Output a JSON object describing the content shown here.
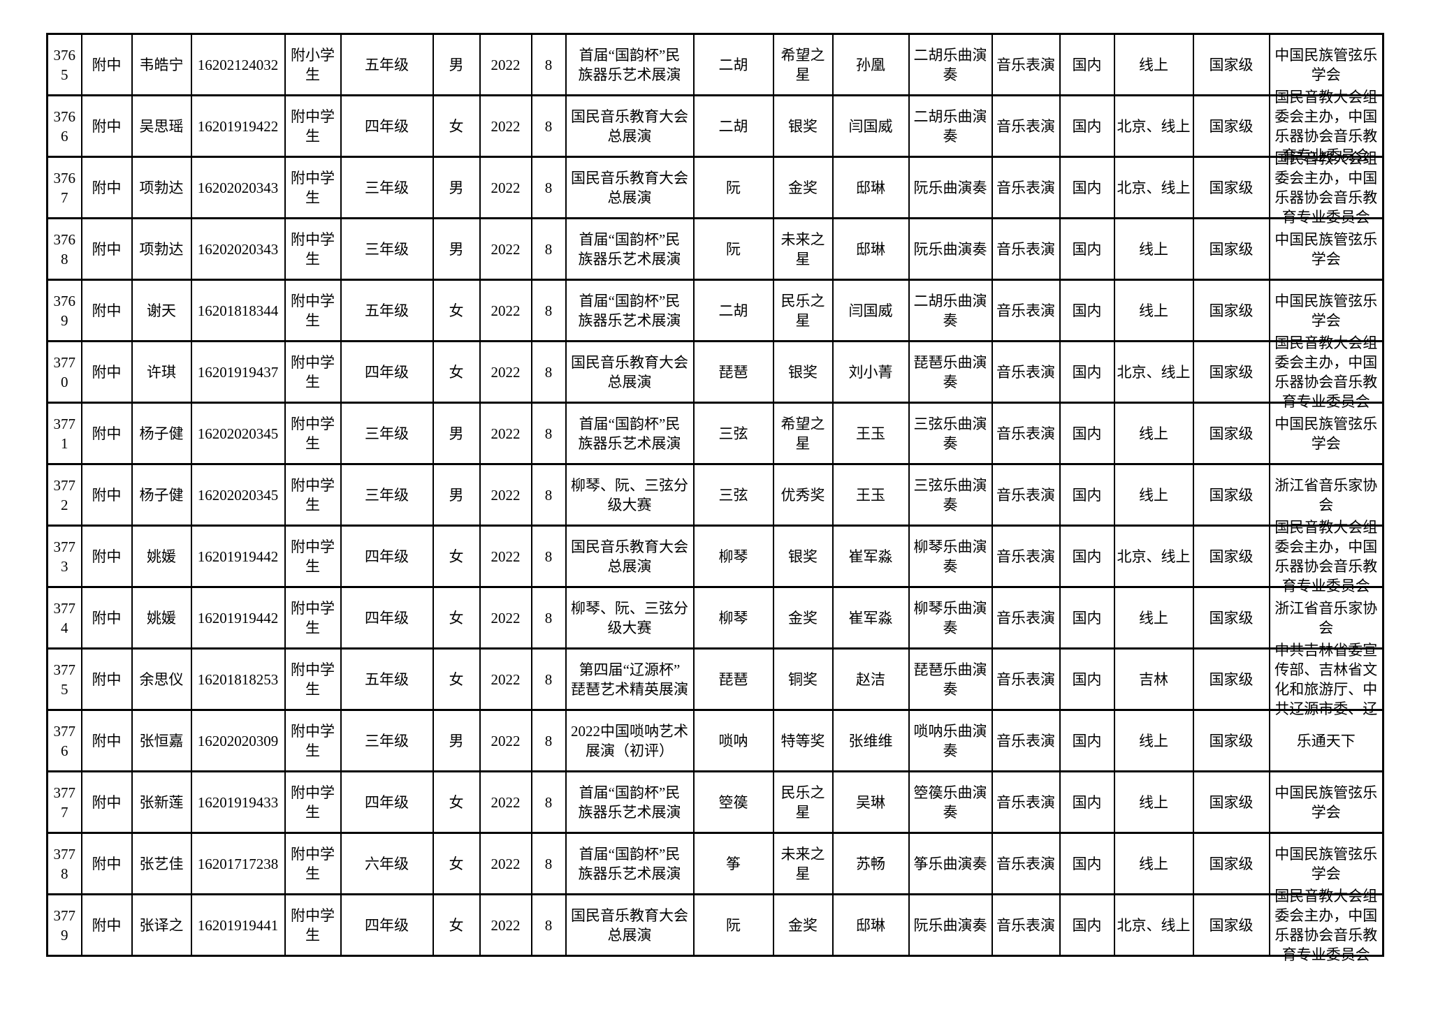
{
  "table": {
    "rows": [
      {
        "cells": [
          "3765",
          "附中",
          "韦皓宁",
          "16202124032",
          "附小学\n生",
          "五年级",
          "男",
          "2022",
          "8",
          "首届“国韵杯”民\n族器乐艺术展演",
          "二胡",
          "希望之\n星",
          "孙凰",
          "二胡乐曲演\n奏",
          "音乐表演",
          "国内",
          "线上",
          "国家级",
          "中国民族管弦乐\n学会"
        ]
      },
      {
        "cells": [
          "3766",
          "附中",
          "吴思瑶",
          "16201919422",
          "附中学\n生",
          "四年级",
          "女",
          "2022",
          "8",
          "国民音乐教育大会\n总展演",
          "二胡",
          "银奖",
          "闫国威",
          "二胡乐曲演\n奏",
          "音乐表演",
          "国内",
          "北京、线上",
          "国家级",
          "国民音教大会组\n委会主办，中国\n乐器协会音乐教\n育专业委员会"
        ]
      },
      {
        "cells": [
          "3767",
          "附中",
          "项勃达",
          "16202020343",
          "附中学\n生",
          "三年级",
          "男",
          "2022",
          "8",
          "国民音乐教育大会\n总展演",
          "阮",
          "金奖",
          "邸琳",
          "阮乐曲演奏",
          "音乐表演",
          "国内",
          "北京、线上",
          "国家级",
          "国民音教大会组\n委会主办，中国\n乐器协会音乐教\n育专业委员会"
        ]
      },
      {
        "cells": [
          "3768",
          "附中",
          "项勃达",
          "16202020343",
          "附中学\n生",
          "三年级",
          "男",
          "2022",
          "8",
          "首届“国韵杯”民\n族器乐艺术展演",
          "阮",
          "未来之\n星",
          "邸琳",
          "阮乐曲演奏",
          "音乐表演",
          "国内",
          "线上",
          "国家级",
          "中国民族管弦乐\n学会"
        ]
      },
      {
        "cells": [
          "3769",
          "附中",
          "谢天",
          "16201818344",
          "附中学\n生",
          "五年级",
          "女",
          "2022",
          "8",
          "首届“国韵杯”民\n族器乐艺术展演",
          "二胡",
          "民乐之\n星",
          "闫国威",
          "二胡乐曲演\n奏",
          "音乐表演",
          "国内",
          "线上",
          "国家级",
          "中国民族管弦乐\n学会"
        ]
      },
      {
        "cells": [
          "3770",
          "附中",
          "许琪",
          "16201919437",
          "附中学\n生",
          "四年级",
          "女",
          "2022",
          "8",
          "国民音乐教育大会\n总展演",
          "琵琶",
          "银奖",
          "刘小菁",
          "琵琶乐曲演\n奏",
          "音乐表演",
          "国内",
          "北京、线上",
          "国家级",
          "国民音教大会组\n委会主办，中国\n乐器协会音乐教\n育专业委员会"
        ]
      },
      {
        "cells": [
          "3771",
          "附中",
          "杨子健",
          "16202020345",
          "附中学\n生",
          "三年级",
          "男",
          "2022",
          "8",
          "首届“国韵杯”民\n族器乐艺术展演",
          "三弦",
          "希望之\n星",
          "王玉",
          "三弦乐曲演\n奏",
          "音乐表演",
          "国内",
          "线上",
          "国家级",
          "中国民族管弦乐\n学会"
        ]
      },
      {
        "cells": [
          "3772",
          "附中",
          "杨子健",
          "16202020345",
          "附中学\n生",
          "三年级",
          "男",
          "2022",
          "8",
          "柳琴、阮、三弦分\n级大赛",
          "三弦",
          "优秀奖",
          "王玉",
          "三弦乐曲演\n奏",
          "音乐表演",
          "国内",
          "线上",
          "国家级",
          "浙江省音乐家协\n会"
        ]
      },
      {
        "cells": [
          "3773",
          "附中",
          "姚媛",
          "16201919442",
          "附中学\n生",
          "四年级",
          "女",
          "2022",
          "8",
          "国民音乐教育大会\n总展演",
          "柳琴",
          "银奖",
          "崔军淼",
          "柳琴乐曲演\n奏",
          "音乐表演",
          "国内",
          "北京、线上",
          "国家级",
          "国民音教大会组\n委会主办，中国\n乐器协会音乐教\n育专业委员会"
        ]
      },
      {
        "cells": [
          "3774",
          "附中",
          "姚媛",
          "16201919442",
          "附中学\n生",
          "四年级",
          "女",
          "2022",
          "8",
          "柳琴、阮、三弦分\n级大赛",
          "柳琴",
          "金奖",
          "崔军淼",
          "柳琴乐曲演\n奏",
          "音乐表演",
          "国内",
          "线上",
          "国家级",
          "浙江省音乐家协\n会"
        ]
      },
      {
        "cells": [
          "3775",
          "附中",
          "余思仪",
          "16201818253",
          "附中学\n生",
          "五年级",
          "女",
          "2022",
          "8",
          "第四届“辽源杯”\n琵琶艺术精英展演",
          "琵琶",
          "铜奖",
          "赵洁",
          "琵琶乐曲演\n奏",
          "音乐表演",
          "国内",
          "吉林",
          "国家级",
          "中共吉林省委宣\n传部、吉林省文\n化和旅游厅、中\n共辽源市委、辽"
        ]
      },
      {
        "cells": [
          "3776",
          "附中",
          "张恒嘉",
          "16202020309",
          "附中学\n生",
          "三年级",
          "男",
          "2022",
          "8",
          "2022中国唢呐艺术\n展演（初评）",
          "唢呐",
          "特等奖",
          "张维维",
          "唢呐乐曲演\n奏",
          "音乐表演",
          "国内",
          "线上",
          "国家级",
          "乐通天下"
        ]
      },
      {
        "cells": [
          "3777",
          "附中",
          "张新莲",
          "16201919433",
          "附中学\n生",
          "四年级",
          "女",
          "2022",
          "8",
          "首届“国韵杯”民\n族器乐艺术展演",
          "箜篌",
          "民乐之\n星",
          "吴琳",
          "箜篌乐曲演\n奏",
          "音乐表演",
          "国内",
          "线上",
          "国家级",
          "中国民族管弦乐\n学会"
        ]
      },
      {
        "cells": [
          "3778",
          "附中",
          "张艺佳",
          "16201717238",
          "附中学\n生",
          "六年级",
          "女",
          "2022",
          "8",
          "首届“国韵杯”民\n族器乐艺术展演",
          "筝",
          "未来之\n星",
          "苏畅",
          "筝乐曲演奏",
          "音乐表演",
          "国内",
          "线上",
          "国家级",
          "中国民族管弦乐\n学会"
        ]
      },
      {
        "cells": [
          "3779",
          "附中",
          "张译之",
          "16201919441",
          "附中学\n生",
          "四年级",
          "女",
          "2022",
          "8",
          "国民音乐教育大会\n总展演",
          "阮",
          "金奖",
          "邸琳",
          "阮乐曲演奏",
          "音乐表演",
          "国内",
          "北京、线上",
          "国家级",
          "国民音教大会组\n委会主办，中国\n乐器协会音乐教\n育专业委员会"
        ]
      }
    ]
  }
}
